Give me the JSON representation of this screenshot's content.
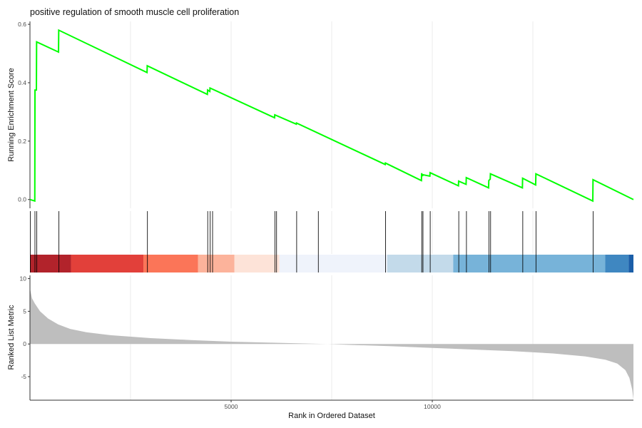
{
  "chart_data": {
    "type": "line",
    "title": "positive regulation of smooth muscle cell proliferation",
    "xlabel": "Rank in Ordered Dataset",
    "xlim": [
      0,
      15000
    ],
    "x_ticks": [
      5000,
      10000
    ],
    "x_tick_labels": [
      "5000",
      "10000"
    ],
    "grid": "vertical major lines only",
    "enrichment": {
      "ylabel": "Running Enrichment Score",
      "ylim": [
        -0.03,
        0.61
      ],
      "y_ticks": [
        0.0,
        0.2,
        0.4,
        0.6
      ],
      "y_tick_labels": [
        "0.0",
        "0.2",
        "0.4",
        "0.6"
      ],
      "line_color": "#00ff00",
      "hit_ranks": [
        0,
        115,
        160,
        710,
        2910,
        4410,
        4470,
        4530,
        6080,
        6120,
        6620,
        7160,
        8830,
        9730,
        9760,
        9940,
        10650,
        10840,
        11400,
        11440,
        12240,
        12570,
        13990
      ],
      "running_score": [
        [
          0,
          0.0
        ],
        [
          120,
          -0.005
        ],
        [
          125,
          0.375
        ],
        [
          160,
          0.375
        ],
        [
          165,
          0.54
        ],
        [
          710,
          0.505
        ],
        [
          715,
          0.58
        ],
        [
          2910,
          0.435
        ],
        [
          2915,
          0.458
        ],
        [
          4410,
          0.36
        ],
        [
          4415,
          0.375
        ],
        [
          4470,
          0.37
        ],
        [
          4475,
          0.382
        ],
        [
          6080,
          0.28
        ],
        [
          6085,
          0.29
        ],
        [
          6620,
          0.258
        ],
        [
          6625,
          0.262
        ],
        [
          8830,
          0.12
        ],
        [
          8835,
          0.125
        ],
        [
          9730,
          0.065
        ],
        [
          9735,
          0.09
        ],
        [
          9760,
          0.08
        ],
        [
          9765,
          0.085
        ],
        [
          9940,
          0.08
        ],
        [
          9945,
          0.092
        ],
        [
          10650,
          0.047
        ],
        [
          10655,
          0.063
        ],
        [
          10840,
          0.052
        ],
        [
          10845,
          0.075
        ],
        [
          11400,
          0.04
        ],
        [
          11405,
          0.065
        ],
        [
          11440,
          0.07
        ],
        [
          11445,
          0.088
        ],
        [
          12240,
          0.04
        ],
        [
          12245,
          0.073
        ],
        [
          12570,
          0.05
        ],
        [
          12575,
          0.088
        ],
        [
          13990,
          -0.005
        ],
        [
          13995,
          0.068
        ],
        [
          15000,
          0.0
        ]
      ]
    },
    "color_bar": [
      {
        "from": 0,
        "to": 1020,
        "color": "#b2232b"
      },
      {
        "from": 1020,
        "to": 2820,
        "color": "#e2403a"
      },
      {
        "from": 2820,
        "to": 4180,
        "color": "#fb7558"
      },
      {
        "from": 4180,
        "to": 5080,
        "color": "#fcb39b"
      },
      {
        "from": 5080,
        "to": 6200,
        "color": "#fde3d8"
      },
      {
        "from": 6200,
        "to": 8880,
        "color": "#eff3fb"
      },
      {
        "from": 8880,
        "to": 10520,
        "color": "#c3daea"
      },
      {
        "from": 10520,
        "to": 14300,
        "color": "#77b3d9"
      },
      {
        "from": 14300,
        "to": 14880,
        "color": "#3f87c1"
      },
      {
        "from": 14880,
        "to": 15000,
        "color": "#1b5ea8"
      }
    ],
    "ranked_metric": {
      "ylabel": "Ranked List Metric",
      "ylim": [
        -8.6,
        10.5
      ],
      "y_ticks": [
        -5,
        0,
        5,
        10
      ],
      "y_tick_labels": [
        "-5",
        "0",
        "5",
        "10"
      ],
      "fill_color": "#bebebe",
      "profile": [
        [
          0,
          8.5
        ],
        [
          50,
          7.0
        ],
        [
          120,
          6.2
        ],
        [
          250,
          5.0
        ],
        [
          450,
          3.9
        ],
        [
          700,
          3.0
        ],
        [
          1000,
          2.3
        ],
        [
          1400,
          1.8
        ],
        [
          2000,
          1.35
        ],
        [
          3000,
          0.9
        ],
        [
          4000,
          0.6
        ],
        [
          5000,
          0.35
        ],
        [
          6000,
          0.2
        ],
        [
          7000,
          0.05
        ],
        [
          7400,
          0.0
        ],
        [
          8000,
          -0.15
        ],
        [
          9000,
          -0.35
        ],
        [
          10000,
          -0.6
        ],
        [
          11000,
          -0.85
        ],
        [
          12000,
          -1.1
        ],
        [
          13000,
          -1.45
        ],
        [
          13800,
          -1.9
        ],
        [
          14300,
          -2.4
        ],
        [
          14600,
          -3.0
        ],
        [
          14800,
          -4.0
        ],
        [
          14900,
          -5.2
        ],
        [
          14970,
          -7.0
        ],
        [
          15000,
          -8.5
        ]
      ]
    }
  }
}
